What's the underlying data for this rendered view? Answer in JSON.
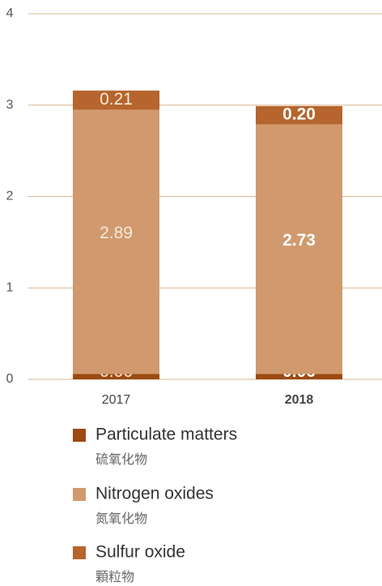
{
  "chart_data": {
    "type": "stacked_bar",
    "categories": [
      "2017",
      "2018"
    ],
    "highlight": 1,
    "series": [
      {
        "name": "Particulate matters",
        "subname": "硫氧化物",
        "color": "#9c4a12",
        "values": [
          0.06,
          0.06
        ],
        "value_labels": [
          "0.06",
          "0.06"
        ]
      },
      {
        "name": "Nitrogen oxides",
        "subname": "氮氧化物",
        "color": "#d09a6e",
        "values": [
          2.89,
          2.73
        ],
        "value_labels": [
          "2.89",
          "2.73"
        ]
      },
      {
        "name": "Sulfur oxide",
        "subname": "顆粒物",
        "color": "#b5652d",
        "values": [
          0.21,
          0.2
        ],
        "value_labels": [
          "0.21",
          "0.20"
        ]
      }
    ],
    "ylim": [
      0,
      4
    ],
    "yticks": [
      0,
      1,
      2,
      3,
      4
    ],
    "grid": true
  }
}
